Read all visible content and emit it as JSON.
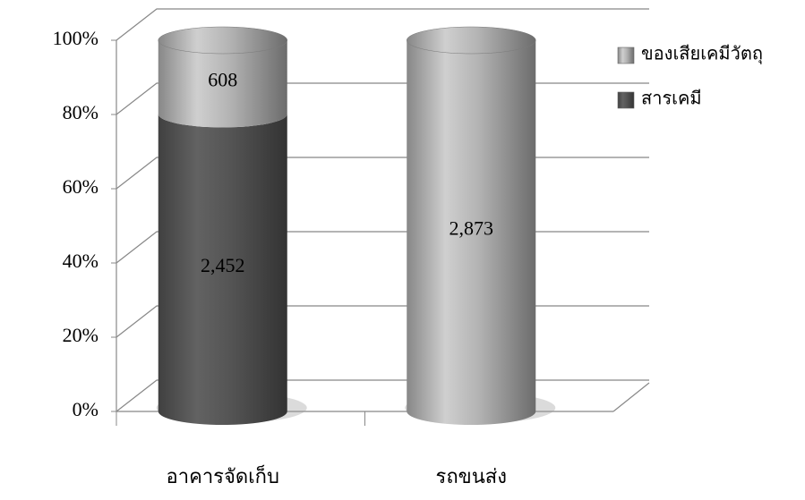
{
  "chart_data": {
    "type": "bar",
    "stacking": "percent",
    "categories": [
      "อาคารจัดเก็บ",
      "รถขนส่ง"
    ],
    "series": [
      {
        "name": "สารเคมี",
        "color": "#555555",
        "values": [
          2452,
          0
        ],
        "value_labels": [
          "2,452",
          null
        ]
      },
      {
        "name": "ของเสียเคมีวัตถุ",
        "color": "#b4b4b4",
        "values": [
          608,
          2873
        ],
        "value_labels": [
          "608",
          "2,873"
        ]
      }
    ],
    "ylim": [
      0,
      100
    ],
    "yticks": [
      {
        "value": 0,
        "label": "0%"
      },
      {
        "value": 20,
        "label": "20%"
      },
      {
        "value": 40,
        "label": "40%"
      },
      {
        "value": 60,
        "label": "60%"
      },
      {
        "value": 80,
        "label": "80%"
      },
      {
        "value": 100,
        "label": "100%"
      }
    ],
    "grid": true,
    "legend": "top-right"
  }
}
